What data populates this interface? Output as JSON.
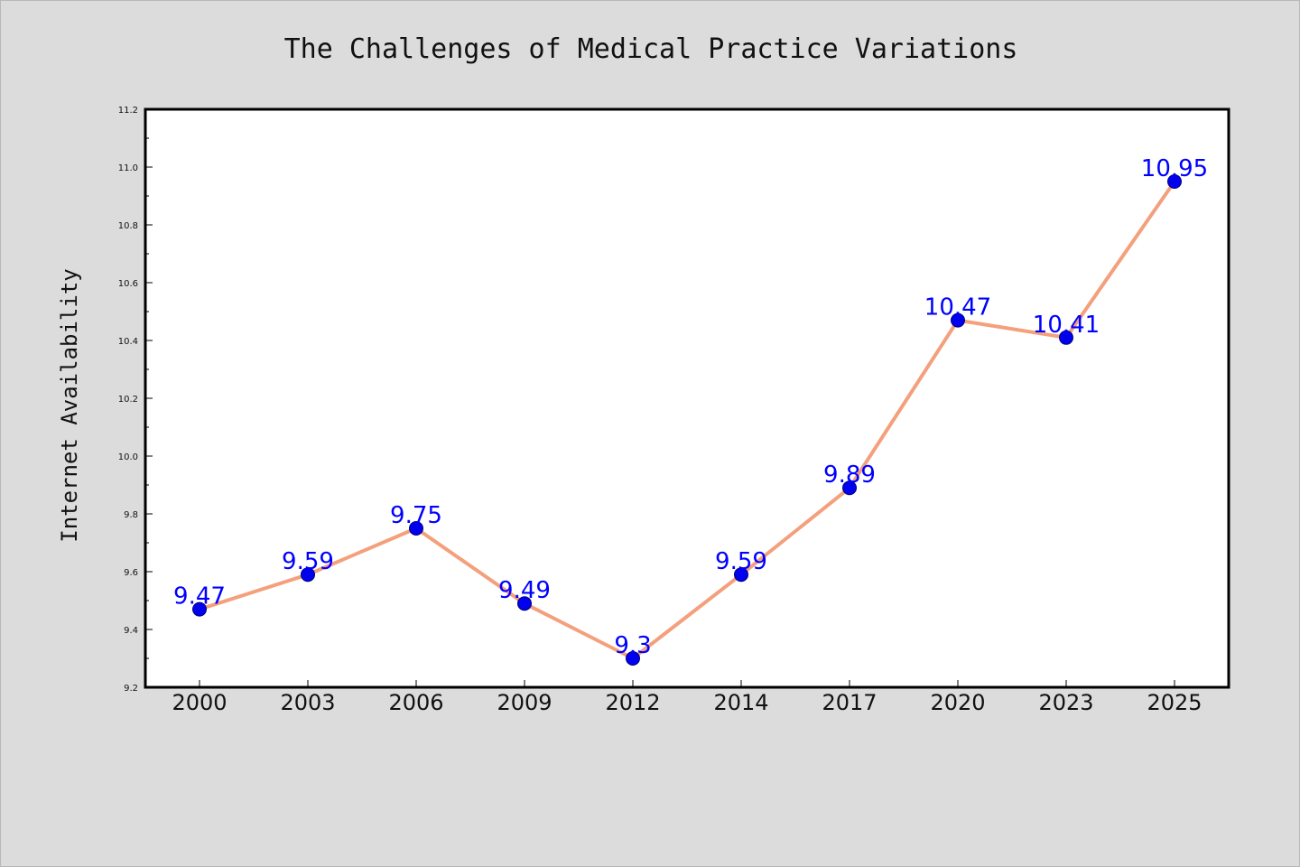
{
  "chart_data": {
    "type": "line",
    "title": "The Challenges of Medical Practice Variations",
    "xlabel": "",
    "ylabel": "Internet Availability",
    "categories": [
      "2000",
      "2003",
      "2006",
      "2009",
      "2012",
      "2014",
      "2017",
      "2020",
      "2023",
      "2025"
    ],
    "series": [
      {
        "values": [
          9.47,
          9.59,
          9.75,
          9.49,
          9.3,
          9.59,
          9.89,
          10.47,
          10.41,
          10.95
        ],
        "labels": [
          "9.47",
          "9.59",
          "9.75",
          "9.49",
          "9.3",
          "9.59",
          "9.89",
          "10.47",
          "10.41",
          "10.95"
        ]
      }
    ],
    "ylim": [
      9.2,
      11.2
    ],
    "yticks": [
      "9.2",
      "9.4",
      "9.6",
      "9.8",
      "10.0",
      "10.2",
      "10.4",
      "10.6",
      "10.8",
      "11.0",
      "11.2"
    ],
    "grid": false,
    "legend": "none",
    "colors": {
      "background": "#dcdcdc",
      "plot_background": "#ffffff",
      "line": "#f4a07c",
      "marker": "#0000ee",
      "marker_edge": "#00007a",
      "data_label": "#0000ff",
      "axis": "#000000"
    }
  }
}
